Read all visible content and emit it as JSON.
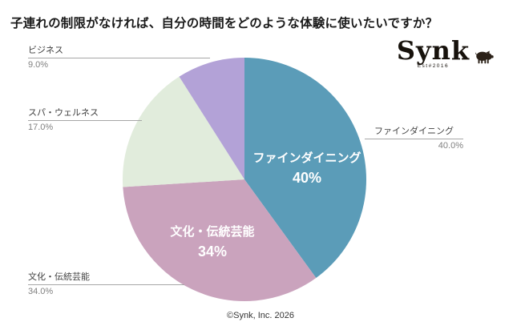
{
  "title": "子連れの制限がなければ、自分の時間をどのような体験に使いたいですか？",
  "logo": {
    "name": "Synk",
    "tagline": "Est#2016"
  },
  "footer": "©Synk, Inc. 2026",
  "chart_data": {
    "type": "pie",
    "title": "子連れの制限がなければ、自分の時間をどのような体験に使いたいですか？",
    "labels": [
      "ファインダイニング",
      "文化・伝統芸能",
      "スパ・ウェルネス",
      "ビジネス"
    ],
    "values": [
      40,
      34,
      17,
      9
    ],
    "unit": "%",
    "colors": [
      "#5b9cb8",
      "#caa3bd",
      "#e1ecdc",
      "#b3a2d7"
    ],
    "start_angle_deg": 0,
    "direction": "clockwise",
    "legend_position": "none",
    "inside_labels": [
      {
        "text": "ファインダイニング",
        "value": "40%"
      },
      {
        "text": "文化・伝統芸能",
        "value": "34%"
      }
    ],
    "callouts": [
      {
        "label": "ビジネス",
        "value": "9.0%"
      },
      {
        "label": "スパ・ウェルネス",
        "value": "17.0%"
      },
      {
        "label": "ファインダイニング",
        "value": "40.0%"
      },
      {
        "label": "文化・伝統芸能",
        "value": "34.0%"
      }
    ]
  }
}
